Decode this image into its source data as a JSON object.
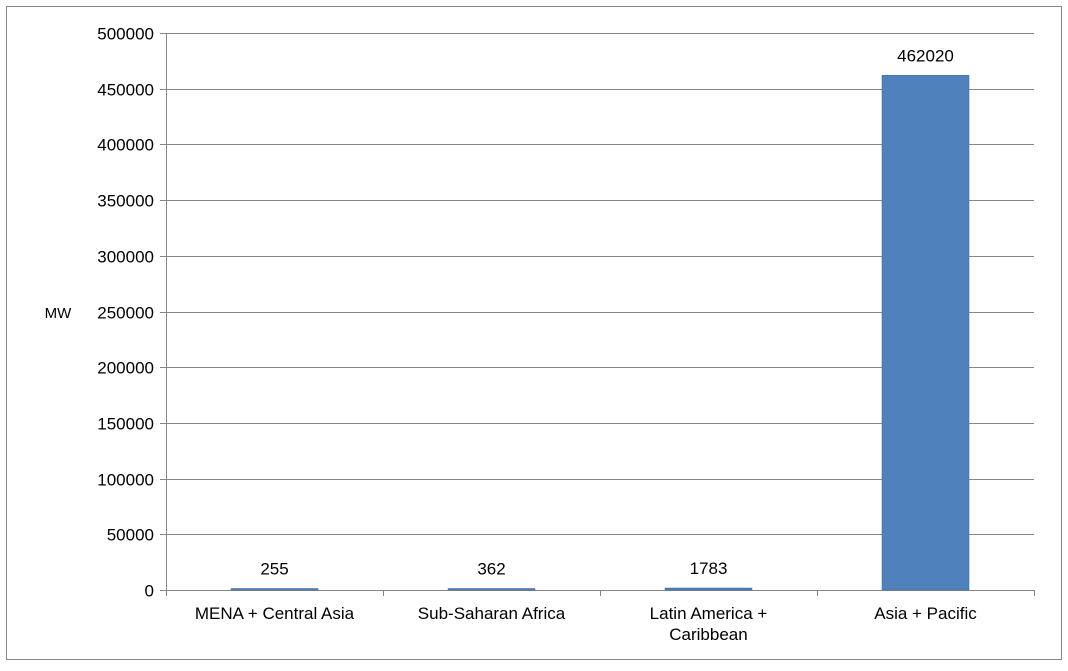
{
  "chart_data": {
    "type": "bar",
    "title": "",
    "xlabel": "",
    "ylabel": "MW",
    "categories": [
      [
        "MENA + Central Asia"
      ],
      [
        "Sub-Saharan Africa"
      ],
      [
        "Latin America +",
        "Caribbean"
      ],
      [
        "Asia + Pacific"
      ]
    ],
    "values": [
      255,
      362,
      1783,
      462020
    ],
    "data_labels": [
      "255",
      "362",
      "1783",
      "462020"
    ],
    "ylim": [
      0,
      500000
    ],
    "yticks": [
      0,
      50000,
      100000,
      150000,
      200000,
      250000,
      300000,
      350000,
      400000,
      450000,
      500000
    ],
    "ytick_labels": [
      "0",
      "50000",
      "100000",
      "150000",
      "200000",
      "250000",
      "300000",
      "350000",
      "400000",
      "450000",
      "500000"
    ],
    "grid": true,
    "legend": "none",
    "bar_color": "#4f81bd",
    "bar_edge_color": "#3c6595",
    "gridline_color": "#868686",
    "border_color": "#868686"
  }
}
